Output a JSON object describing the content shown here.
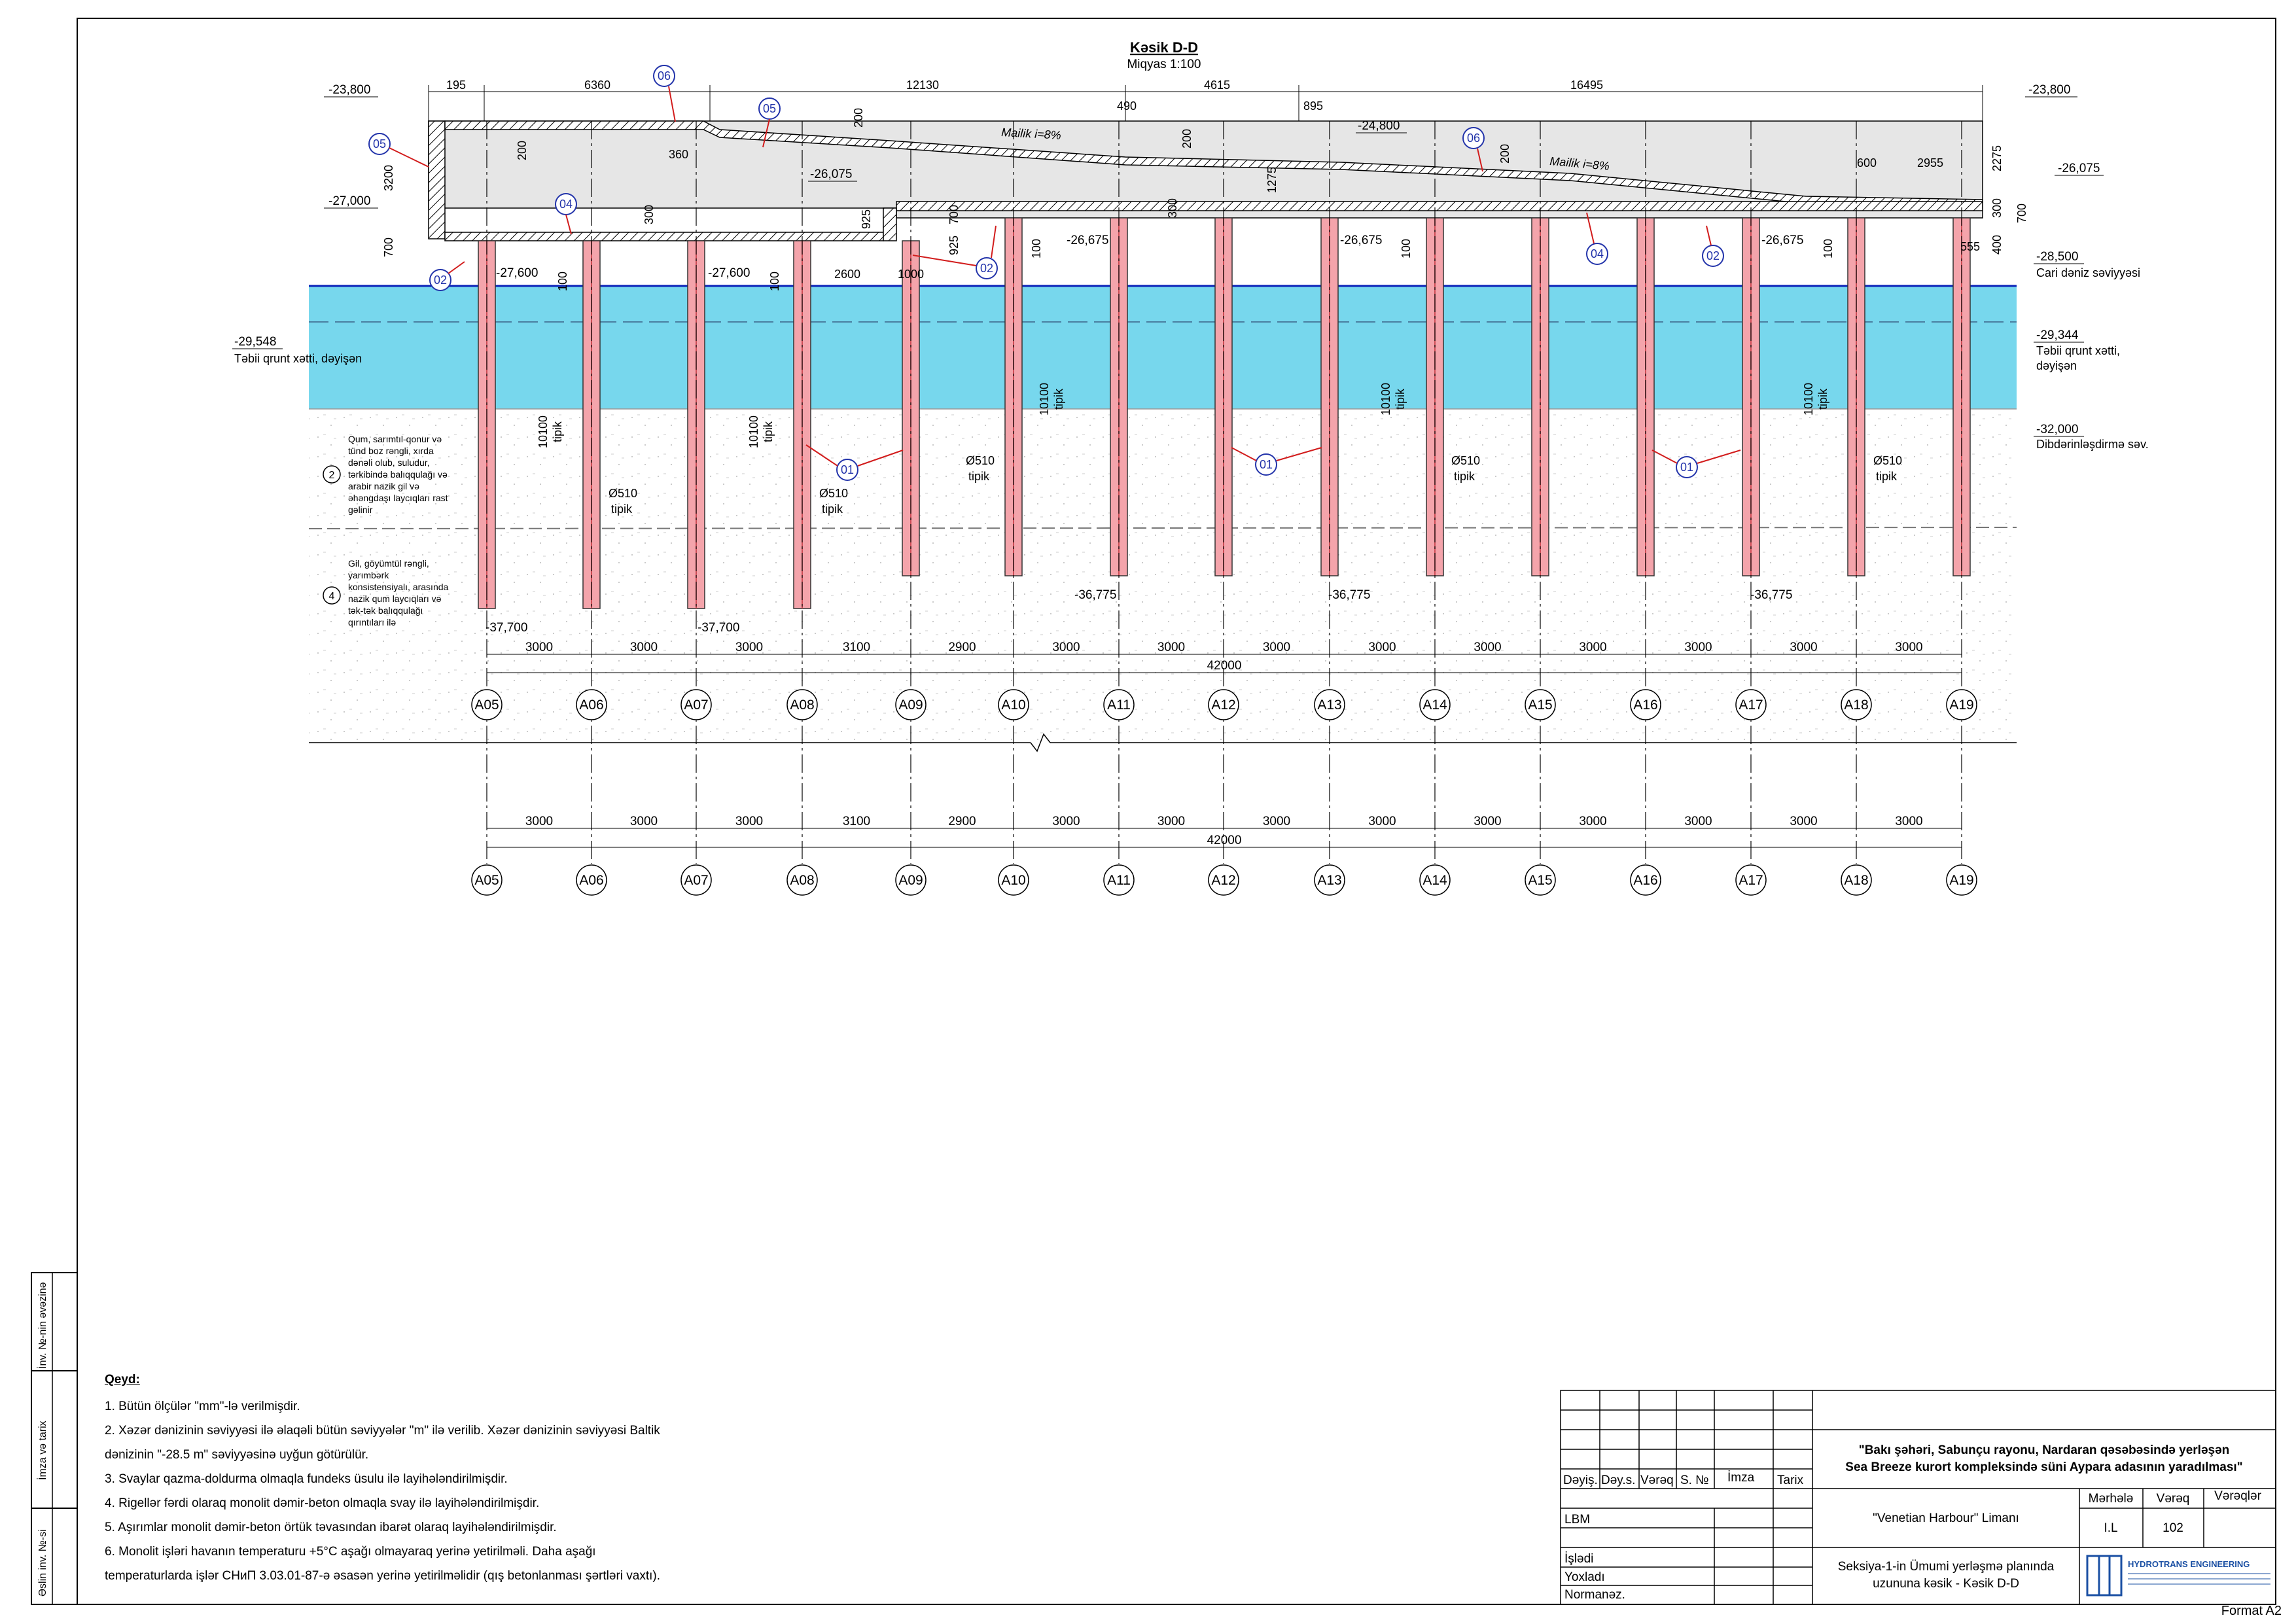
{
  "header": {
    "title": "Kəsik D-D",
    "scale": "Miqyas 1:100"
  },
  "top_dims": {
    "d1": "195",
    "d2": "6360",
    "d3": "12130",
    "d4": "4615",
    "d5": "16495",
    "d6": "490",
    "d7": "895",
    "d8": "600",
    "d9": "2955"
  },
  "vertical_dims": {
    "v3200": "3200",
    "v700": "700",
    "v200": "200",
    "v300": "300",
    "v925": "925",
    "v100": "100",
    "v1275": "1275",
    "v2275": "2275",
    "v400": "400",
    "v10100": "10100",
    "tipik": "tipik"
  },
  "small_dims": {
    "d360": "360",
    "d2600": "2600",
    "d1000": "1000",
    "d555": "555"
  },
  "slope": "Mailik i=8%",
  "elevations": {
    "e_23800": "-23,800",
    "e_27000": "-27,000",
    "e_26075": "-26,075",
    "e_24800": "-24,800",
    "e_27600": "-27,600",
    "e_26675": "-26,675",
    "e_28500": "-28,500",
    "e_29548": "-29,548",
    "e_29344": "-29,344",
    "e_32000": "-32,000",
    "e_37700": "-37,700",
    "e_36775": "-36,775"
  },
  "labels": {
    "sea_level": "Cari dəniz səviyyəsi",
    "ground_line_left": "Təbii qrunt xətti, dəyişən",
    "ground_line_right_1": "Təbii qrunt xətti,",
    "ground_line_right_2": "dəyişən",
    "dredge_level": "Dibdərinləşdirmə səv.",
    "pile_dia": "Ø510"
  },
  "soil": {
    "layer2_no": "2",
    "layer2_text": [
      "Qum, sarımtıl-qonur və",
      "tünd boz rəngli, xırda",
      "dənəli olub, suludur,",
      "tərkibində balıqqulağı və",
      "arabir nazik gil və",
      "əhəngdaşı laycıqları rast",
      "gəlinir"
    ],
    "layer4_no": "4",
    "layer4_text": [
      "Gil, göyümtül rəngli,",
      "yarımbərk",
      "konsistensiyalı, arasında",
      "nazik qum laycıqları və",
      "tək-tək balıqqulağı",
      "qırıntıları ilə"
    ]
  },
  "markers": [
    "01",
    "02",
    "04",
    "05",
    "06"
  ],
  "axes": [
    "A05",
    "A06",
    "A07",
    "A08",
    "A09",
    "A10",
    "A11",
    "A12",
    "A13",
    "A14",
    "A15",
    "A16",
    "A17",
    "A18",
    "A19"
  ],
  "spacing": [
    "3000",
    "3000",
    "3000",
    "3100",
    "2900",
    "3000",
    "3000",
    "3000",
    "3000",
    "3000",
    "3000",
    "3000",
    "3000",
    "3000"
  ],
  "total": "42000",
  "notes": {
    "heading": "Qeyd:",
    "lines": [
      "1.  Bütün ölçülər \"mm\"-lə verilmişdir.",
      "2.  Xəzər dənizinin səviyyəsi ilə əlaqəli bütün səviyyələr \"m\" ilə verilib. Xəzər dənizinin səviyyəsi Baltik",
      "     dənizinin \"-28.5 m\" səviyyəsinə uyğun götürülür.",
      "3.  Svaylar qazma-doldurma olmaqla fundeks üsulu ilə layihələndirilmişdir.",
      "4.  Rigellər fərdi olaraq monolit dəmir-beton olmaqla svay ilə layihələndirilmişdir.",
      "5.  Aşırımlar monolit dəmir-beton örtük təvasından ibarət olaraq layihələndirilmişdir.",
      "6.  Monolit işləri havanın temperaturu +5°C aşağı olmayaraq yerinə yetirilməli. Daha aşağı",
      "     temperaturlarda işlər СНиП 3.03.01-87-ə əsasən yerinə yetirilməlidir (qış betonlanması şərtləri vaxtı)."
    ]
  },
  "margin_stamp": {
    "inv_replace": "İnv. №-nin əvəzinə",
    "sign_date": "İmza və tarix",
    "orig_inv": "Əslin inv. №-si"
  },
  "title_block": {
    "cols": [
      "Dəyiş.",
      "Dəy.s.",
      "Vərəq",
      "S. №",
      "İmza",
      "Tarix"
    ],
    "rows": [
      "LBM",
      "İşlədi",
      "Yoxladı",
      "Normanəz."
    ],
    "project_1": "\"Bakı şəhəri, Sabunçu rayonu, Nardaran qəsəbəsində yerləşən",
    "project_2": "Sea Breeze kurort kompleksində süni Aypara adasının yaradılması\"",
    "object": "\"Venetian Harbour\" Limanı",
    "stage_label": "Mərhələ",
    "sheet_label": "Vərəq",
    "sheets_label": "Vərəqlər",
    "stage": "I.L",
    "sheet": "102",
    "sheets": "",
    "drawing_1": "Seksiya-1-in Ümumi yerləşmə planında",
    "drawing_2": "uzununa kəsik - Kəsik D-D",
    "company": "HYDROTRANS ENGINEERING"
  },
  "format": "Format A2",
  "colors": {
    "water": "#5fd0ea",
    "pile": "#f4a4ab",
    "pile_edge": "#c0303a",
    "marker": "#2233aa",
    "concrete": "#e6e6e6",
    "leader": "#d21c1c"
  }
}
